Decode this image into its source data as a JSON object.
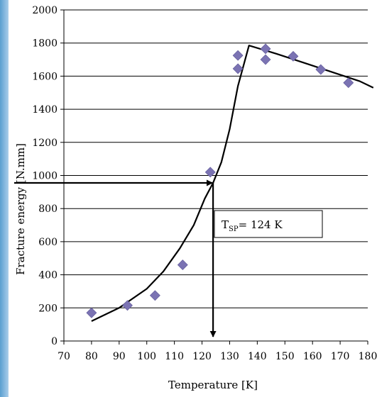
{
  "chart_data": {
    "type": "scatter",
    "xlabel": "Temperature [K]",
    "ylabel": "Fracture energy [N.mm]",
    "xlim": [
      70,
      180
    ],
    "ylim": [
      0,
      2000
    ],
    "x_ticks": [
      70,
      80,
      90,
      100,
      110,
      120,
      130,
      140,
      150,
      160,
      170,
      180
    ],
    "y_ticks": [
      0,
      200,
      400,
      600,
      800,
      1000,
      1200,
      1400,
      1600,
      1800,
      2000
    ],
    "grid": "horizontal",
    "legend": "none",
    "series": [
      {
        "kind": "scatter",
        "marker": "diamond",
        "color": "#7b73b3",
        "x": [
          80,
          93,
          103,
          113,
          123,
          133,
          133,
          143,
          143,
          153,
          163,
          173
        ],
        "y": [
          170,
          215,
          275,
          460,
          1020,
          1725,
          1645,
          1765,
          1700,
          1720,
          1640,
          1560
        ]
      },
      {
        "kind": "line",
        "color": "#000000",
        "x": [
          80,
          90,
          100,
          106,
          112,
          117,
          121,
          124,
          127,
          130,
          133,
          137,
          147,
          157,
          167,
          177,
          182
        ],
        "y": [
          120,
          200,
          315,
          420,
          560,
          700,
          860,
          955,
          1080,
          1280,
          1540,
          1785,
          1735,
          1680,
          1625,
          1570,
          1530
        ]
      }
    ],
    "annotations": {
      "horizontal_arrow": {
        "from": [
          70,
          955
        ],
        "to": [
          124,
          955
        ]
      },
      "vertical_arrow": {
        "from": [
          124,
          955
        ],
        "to": [
          124,
          0
        ]
      },
      "label_main": "T",
      "label_sub": "SP",
      "label_rest": "= 124 K"
    }
  }
}
